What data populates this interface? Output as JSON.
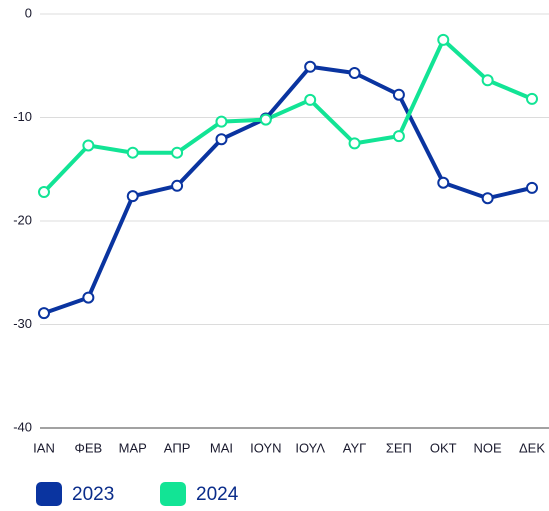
{
  "chart_data": {
    "type": "line",
    "categories": [
      "ΙΑΝ",
      "ΦΕΒ",
      "ΜΑΡ",
      "ΑΠΡ",
      "ΜΑΙ",
      "ΙΟΥΝ",
      "ΙΟΥΛ",
      "ΑΥΓ",
      "ΣΕΠ",
      "ΟΚΤ",
      "ΝΟΕ",
      "ΔΕΚ"
    ],
    "series": [
      {
        "name": "2023",
        "color": "#0a34a0",
        "values": [
          -28.9,
          -27.4,
          -17.6,
          -16.6,
          -12.1,
          -10.1,
          -5.1,
          -5.7,
          -7.8,
          -16.3,
          -17.8,
          -16.8
        ]
      },
      {
        "name": "2024",
        "color": "#12e495",
        "values": [
          -17.2,
          -12.7,
          -13.4,
          -13.4,
          -10.4,
          -10.2,
          -8.3,
          -12.5,
          -11.8,
          -2.5,
          -6.4,
          -8.2
        ]
      }
    ],
    "ylim": [
      -40,
      0
    ],
    "yticks": [
      0,
      -10,
      -20,
      -30,
      -40
    ],
    "grid": true,
    "legend": "bottom"
  }
}
